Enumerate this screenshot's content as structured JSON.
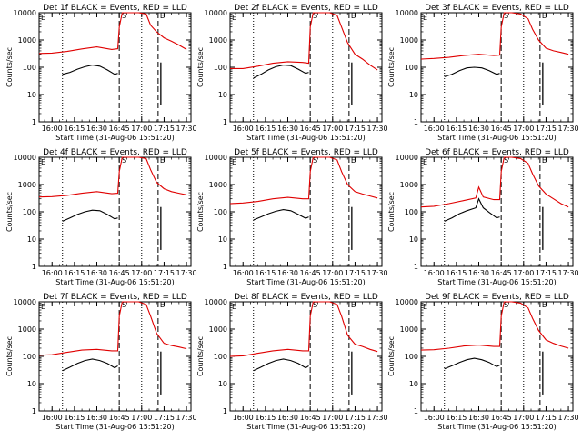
{
  "chart_data": {
    "type": "line",
    "y_scale": "log",
    "ylim": [
      1,
      10000
    ],
    "y_ticks": [
      "1",
      "10",
      "100",
      "1000",
      "10000"
    ],
    "x_range": [
      "16:00",
      "17:30"
    ],
    "x_ticks": [
      "16:00",
      "16:15",
      "16:30",
      "16:45",
      "17:00",
      "17:15",
      "17:30"
    ],
    "ylabel": "Counts/sec",
    "xlabel": "Start Time (31-Aug-06 15:51:20)",
    "series_colors": {
      "events": "#000000",
      "lld": "#e00000"
    },
    "panels": [
      {
        "title": "Det 1f BLACK = Events, RED = LLD",
        "dotted": [
          "16:07",
          "17:00"
        ],
        "dashed": [
          "16:45",
          "17:11"
        ],
        "markers": [
          "S",
          "E"
        ],
        "lld": {
          "x": [
            "15:51",
            "16:00",
            "16:10",
            "16:20",
            "16:30",
            "16:40",
            "16:44",
            "16:45",
            "16:47",
            "16:52",
            "16:58",
            "17:03",
            "17:06",
            "17:10",
            "17:15",
            "17:20",
            "17:25",
            "17:30"
          ],
          "y": [
            320,
            330,
            380,
            470,
            560,
            450,
            480,
            3000,
            10000,
            10000,
            10000,
            9000,
            3500,
            2000,
            1200,
            900,
            650,
            450
          ]
        },
        "events": {
          "x": [
            "16:07",
            "16:12",
            "16:17",
            "16:22",
            "16:27",
            "16:32",
            "16:37",
            "16:42",
            "16:44"
          ],
          "y": [
            55,
            65,
            85,
            105,
            120,
            110,
            80,
            55,
            60
          ]
        }
      },
      {
        "title": "Det 2f BLACK = Events, RED = LLD",
        "dotted": [
          "16:07",
          "17:00"
        ],
        "dashed": [
          "16:45",
          "17:11"
        ],
        "markers": [
          "S",
          "E"
        ],
        "lld": {
          "x": [
            "15:51",
            "16:00",
            "16:10",
            "16:20",
            "16:30",
            "16:40",
            "16:44",
            "16:45",
            "16:47",
            "16:52",
            "16:58",
            "17:03",
            "17:06",
            "17:10",
            "17:15",
            "17:20",
            "17:25",
            "17:30"
          ],
          "y": [
            90,
            90,
            110,
            140,
            160,
            150,
            140,
            3000,
            10000,
            10000,
            10000,
            8000,
            3000,
            800,
            300,
            200,
            120,
            80
          ]
        },
        "events": {
          "x": [
            "16:07",
            "16:12",
            "16:17",
            "16:22",
            "16:27",
            "16:32",
            "16:37",
            "16:42",
            "16:44"
          ],
          "y": [
            40,
            55,
            80,
            105,
            120,
            115,
            85,
            60,
            65
          ]
        }
      },
      {
        "title": "Det 3f BLACK = Events, RED = LLD",
        "dotted": [
          "16:07",
          "17:00"
        ],
        "dashed": [
          "16:45",
          "17:11"
        ],
        "markers": [
          "S",
          "E"
        ],
        "lld": {
          "x": [
            "15:51",
            "16:00",
            "16:10",
            "16:20",
            "16:30",
            "16:40",
            "16:44",
            "16:45",
            "16:47",
            "16:52",
            "16:58",
            "17:03",
            "17:06",
            "17:10",
            "17:15",
            "17:20",
            "17:25",
            "17:30"
          ],
          "y": [
            200,
            210,
            230,
            270,
            300,
            270,
            280,
            3000,
            10000,
            10000,
            9000,
            6000,
            2500,
            1000,
            500,
            400,
            350,
            300
          ]
        },
        "events": {
          "x": [
            "16:07",
            "16:12",
            "16:17",
            "16:22",
            "16:27",
            "16:32",
            "16:37",
            "16:42",
            "16:44"
          ],
          "y": [
            45,
            55,
            75,
            95,
            100,
            95,
            75,
            55,
            60
          ]
        }
      },
      {
        "title": "Det 4f BLACK = Events, RED = LLD",
        "dotted": [
          "16:07",
          "17:00"
        ],
        "dashed": [
          "16:45",
          "17:11"
        ],
        "markers": [
          "S",
          "E"
        ],
        "lld": {
          "x": [
            "15:51",
            "16:00",
            "16:10",
            "16:20",
            "16:30",
            "16:40",
            "16:44",
            "16:45",
            "16:47",
            "16:52",
            "16:58",
            "17:03",
            "17:06",
            "17:10",
            "17:15",
            "17:20",
            "17:25",
            "17:30"
          ],
          "y": [
            350,
            360,
            400,
            480,
            550,
            460,
            480,
            3000,
            10000,
            10000,
            10000,
            9000,
            3500,
            1200,
            700,
            550,
            480,
            420
          ]
        },
        "events": {
          "x": [
            "16:07",
            "16:12",
            "16:17",
            "16:22",
            "16:27",
            "16:32",
            "16:37",
            "16:42",
            "16:44"
          ],
          "y": [
            45,
            60,
            80,
            100,
            115,
            110,
            80,
            55,
            60
          ]
        }
      },
      {
        "title": "Det 5f BLACK = Events, RED = LLD",
        "dotted": [
          "16:07",
          "17:00"
        ],
        "dashed": [
          "16:45",
          "17:11"
        ],
        "markers": [
          "S",
          "E"
        ],
        "lld": {
          "x": [
            "15:51",
            "16:00",
            "16:10",
            "16:20",
            "16:30",
            "16:40",
            "16:44",
            "16:45",
            "16:47",
            "16:52",
            "16:58",
            "17:03",
            "17:06",
            "17:10",
            "17:15",
            "17:20",
            "17:25",
            "17:30"
          ],
          "y": [
            200,
            210,
            240,
            300,
            340,
            300,
            300,
            3000,
            10000,
            10000,
            10000,
            8000,
            3000,
            1000,
            550,
            450,
            380,
            320
          ]
        },
        "events": {
          "x": [
            "16:07",
            "16:12",
            "16:17",
            "16:22",
            "16:27",
            "16:32",
            "16:37",
            "16:42",
            "16:44"
          ],
          "y": [
            50,
            65,
            85,
            105,
            120,
            110,
            80,
            58,
            65
          ]
        }
      },
      {
        "title": "Det 6f BLACK = Events, RED = LLD",
        "dotted": [
          "16:07",
          "17:00"
        ],
        "dashed": [
          "16:45",
          "17:11"
        ],
        "markers": [
          "S",
          "E"
        ],
        "lld": {
          "x": [
            "15:51",
            "16:00",
            "16:10",
            "16:20",
            "16:28",
            "16:30",
            "16:33",
            "16:40",
            "16:44",
            "16:45",
            "16:47",
            "16:52",
            "16:58",
            "17:03",
            "17:06",
            "17:10",
            "17:15",
            "17:20",
            "17:25",
            "17:30"
          ],
          "y": [
            150,
            160,
            200,
            260,
            320,
            800,
            350,
            280,
            280,
            3000,
            10000,
            10000,
            9000,
            6000,
            2500,
            900,
            450,
            300,
            200,
            150
          ]
        },
        "events": {
          "x": [
            "16:07",
            "16:12",
            "16:17",
            "16:22",
            "16:28",
            "16:30",
            "16:33",
            "16:37",
            "16:42",
            "16:44"
          ],
          "y": [
            45,
            60,
            85,
            110,
            140,
            300,
            140,
            95,
            60,
            65
          ]
        }
      },
      {
        "title": "Det 7f BLACK = Events, RED = LLD",
        "dotted": [
          "16:07",
          "17:00"
        ],
        "dashed": [
          "16:45",
          "17:11"
        ],
        "markers": [
          "S",
          "E"
        ],
        "lld": {
          "x": [
            "15:51",
            "16:00",
            "16:10",
            "16:20",
            "16:30",
            "16:40",
            "16:44",
            "16:45",
            "16:47",
            "16:52",
            "16:58",
            "17:03",
            "17:06",
            "17:10",
            "17:15",
            "17:20",
            "17:25",
            "17:30"
          ],
          "y": [
            110,
            115,
            140,
            170,
            180,
            160,
            160,
            3000,
            10000,
            10000,
            10000,
            8000,
            3000,
            700,
            300,
            250,
            220,
            190
          ]
        },
        "events": {
          "x": [
            "16:07",
            "16:12",
            "16:17",
            "16:22",
            "16:27",
            "16:32",
            "16:37",
            "16:42",
            "16:44"
          ],
          "y": [
            30,
            40,
            55,
            70,
            80,
            70,
            55,
            38,
            45
          ]
        }
      },
      {
        "title": "Det 8f BLACK = Events, RED = LLD",
        "dotted": [
          "16:07",
          "17:00"
        ],
        "dashed": [
          "16:45",
          "17:11"
        ],
        "markers": [
          "S",
          "E"
        ],
        "lld": {
          "x": [
            "15:51",
            "16:00",
            "16:10",
            "16:20",
            "16:30",
            "16:40",
            "16:44",
            "16:45",
            "16:47",
            "16:52",
            "16:58",
            "17:03",
            "17:06",
            "17:10",
            "17:15",
            "17:20",
            "17:25",
            "17:30"
          ],
          "y": [
            100,
            105,
            130,
            160,
            180,
            160,
            160,
            3000,
            10000,
            10000,
            10000,
            8000,
            3000,
            600,
            280,
            230,
            180,
            150
          ]
        },
        "events": {
          "x": [
            "16:07",
            "16:12",
            "16:17",
            "16:22",
            "16:27",
            "16:32",
            "16:37",
            "16:42",
            "16:44"
          ],
          "y": [
            30,
            40,
            55,
            70,
            80,
            70,
            55,
            38,
            45
          ]
        }
      },
      {
        "title": "Det 9f BLACK = Events, RED = LLD",
        "dotted": [
          "16:07",
          "17:00"
        ],
        "dashed": [
          "16:45",
          "17:11"
        ],
        "markers": [
          "S",
          "E"
        ],
        "lld": {
          "x": [
            "15:51",
            "16:00",
            "16:10",
            "16:20",
            "16:30",
            "16:40",
            "16:44",
            "16:45",
            "16:47",
            "16:52",
            "16:58",
            "17:03",
            "17:06",
            "17:10",
            "17:15",
            "17:20",
            "17:25",
            "17:30"
          ],
          "y": [
            170,
            175,
            200,
            240,
            260,
            230,
            230,
            3000,
            10000,
            10000,
            9000,
            6000,
            2500,
            900,
            400,
            300,
            240,
            200
          ]
        },
        "events": {
          "x": [
            "16:07",
            "16:12",
            "16:17",
            "16:22",
            "16:27",
            "16:32",
            "16:37",
            "16:42",
            "16:44"
          ],
          "y": [
            35,
            45,
            60,
            75,
            85,
            75,
            60,
            42,
            48
          ]
        }
      }
    ]
  }
}
